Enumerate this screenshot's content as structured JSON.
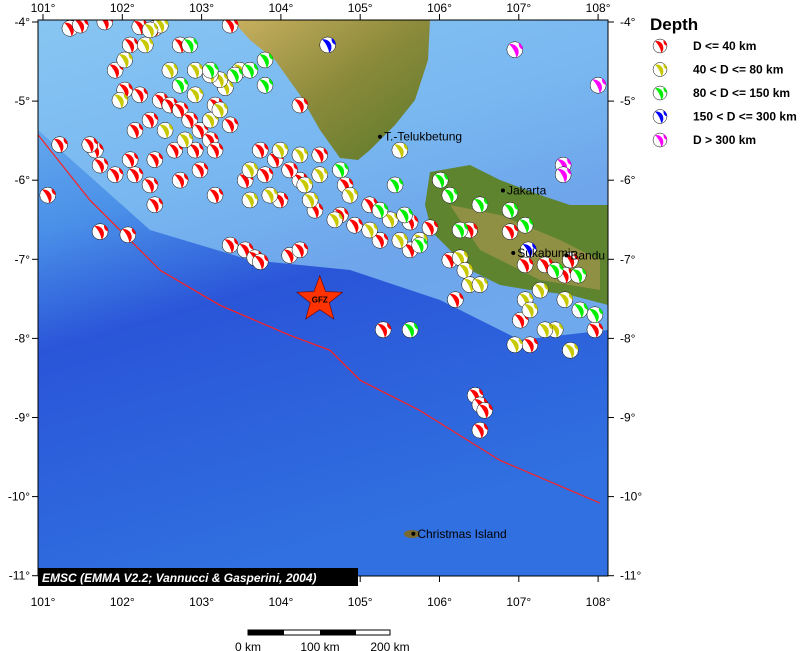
{
  "legend": {
    "title": "Depth",
    "items": [
      {
        "label": "D <= 40 km",
        "color": "#ff0000"
      },
      {
        "label": "40 < D <= 80 km",
        "color": "#c8c800"
      },
      {
        "label": "80 < D <= 150 km",
        "color": "#00ee00"
      },
      {
        "label": "150 < D <= 300 km",
        "color": "#0000ff"
      },
      {
        "label": "D > 300 km",
        "color": "#ff00ff"
      }
    ]
  },
  "axes": {
    "lon_range": [
      101,
      108
    ],
    "lat_range": [
      -11,
      -4
    ],
    "lon_labels": [
      "101°",
      "102°",
      "103°",
      "104°",
      "105°",
      "106°",
      "107°",
      "108°"
    ],
    "lat_labels": [
      "-4°",
      "-5°",
      "-6°",
      "-7°",
      "-8°",
      "-9°",
      "-10°",
      "-11°"
    ]
  },
  "credit": "EMSC (EMMA V2.2; Vannucci & Gasperini, 2004)",
  "scale": {
    "labels": [
      "0 km",
      "100 km",
      "200 km"
    ]
  },
  "cities": [
    {
      "name": "T.-Telukbetung",
      "lon": 105.25,
      "lat": -5.45
    },
    {
      "name": "Jakarta",
      "lon": 106.8,
      "lat": -6.13
    },
    {
      "name": "Sukabumi",
      "lon": 106.93,
      "lat": -6.92
    },
    {
      "name": "Bandu",
      "lon": 107.6,
      "lat": -6.95
    },
    {
      "name": "Christmas Island",
      "lon": 105.67,
      "lat": -10.47
    }
  ],
  "epicenter": {
    "label": "GFZ",
    "lon": 104.49,
    "lat": -7.51,
    "color": "#ff3300"
  },
  "trench": [
    [
      100.94,
      -5.43
    ],
    [
      101.59,
      -6.25
    ],
    [
      102.48,
      -7.14
    ],
    [
      103.23,
      -7.58
    ],
    [
      104.11,
      -7.96
    ],
    [
      104.62,
      -8.15
    ],
    [
      105.0,
      -8.53
    ],
    [
      105.75,
      -8.91
    ],
    [
      106.76,
      -9.54
    ],
    [
      108.02,
      -10.08
    ]
  ],
  "events": {
    "1": [
      [
        101.34,
        -4.08
      ],
      [
        101.47,
        -4.04
      ],
      [
        101.78,
        -4.0
      ],
      [
        102.22,
        -4.06
      ],
      [
        102.41,
        -4.08
      ],
      [
        103.36,
        -4.04
      ],
      [
        102.73,
        -4.29
      ],
      [
        102.1,
        -4.29
      ],
      [
        101.91,
        -4.61
      ],
      [
        102.03,
        -4.86
      ],
      [
        102.22,
        -4.92
      ],
      [
        102.48,
        -4.99
      ],
      [
        102.6,
        -5.05
      ],
      [
        102.73,
        -5.11
      ],
      [
        102.85,
        -5.24
      ],
      [
        102.35,
        -5.24
      ],
      [
        102.16,
        -5.37
      ],
      [
        102.98,
        -5.37
      ],
      [
        103.11,
        -5.49
      ],
      [
        103.17,
        -5.62
      ],
      [
        102.92,
        -5.62
      ],
      [
        102.66,
        -5.62
      ],
      [
        102.41,
        -5.74
      ],
      [
        102.1,
        -5.74
      ],
      [
        101.66,
        -5.62
      ],
      [
        101.21,
        -5.55
      ],
      [
        101.59,
        -5.55
      ],
      [
        101.72,
        -5.81
      ],
      [
        101.91,
        -5.93
      ],
      [
        102.16,
        -5.93
      ],
      [
        102.73,
        -6.0
      ],
      [
        102.98,
        -5.87
      ],
      [
        103.17,
        -6.19
      ],
      [
        102.41,
        -6.31
      ],
      [
        102.35,
        -6.06
      ],
      [
        102.07,
        -6.69
      ],
      [
        101.72,
        -6.65
      ],
      [
        101.06,
        -6.19
      ],
      [
        103.36,
        -5.3
      ],
      [
        103.17,
        -5.05
      ],
      [
        104.24,
        -5.05
      ],
      [
        103.36,
        -6.82
      ],
      [
        103.55,
        -6.88
      ],
      [
        103.67,
        -6.98
      ],
      [
        103.74,
        -7.03
      ],
      [
        104.11,
        -6.95
      ],
      [
        104.24,
        -6.88
      ],
      [
        104.24,
        -6.0
      ],
      [
        104.43,
        -6.38
      ],
      [
        104.81,
        -6.06
      ],
      [
        104.75,
        -6.44
      ],
      [
        104.93,
        -6.57
      ],
      [
        105.12,
        -6.31
      ],
      [
        105.25,
        -6.76
      ],
      [
        105.63,
        -6.88
      ],
      [
        105.63,
        -6.53
      ],
      [
        105.88,
        -6.6
      ],
      [
        106.38,
        -6.63
      ],
      [
        106.2,
        -7.51
      ],
      [
        105.29,
        -7.89
      ],
      [
        106.45,
        -8.72
      ],
      [
        106.51,
        -8.84
      ],
      [
        106.57,
        -8.91
      ],
      [
        106.51,
        -9.16
      ],
      [
        106.13,
        -7.01
      ],
      [
        106.89,
        -6.65
      ],
      [
        107.33,
        -7.07
      ],
      [
        107.08,
        -7.07
      ],
      [
        107.65,
        -7.01
      ],
      [
        107.58,
        -7.2
      ],
      [
        107.96,
        -7.89
      ],
      [
        107.02,
        -7.77
      ],
      [
        107.14,
        -8.08
      ],
      [
        104.11,
        -5.87
      ],
      [
        103.8,
        -5.93
      ],
      [
        103.55,
        -6.0
      ],
      [
        103.99,
        -6.25
      ],
      [
        103.93,
        -5.74
      ],
      [
        104.49,
        -5.68
      ],
      [
        103.74,
        -5.62
      ]
    ],
    "2": [
      [
        102.48,
        -4.04
      ],
      [
        102.35,
        -4.1
      ],
      [
        102.29,
        -4.29
      ],
      [
        102.03,
        -4.48
      ],
      [
        101.97,
        -4.99
      ],
      [
        102.54,
        -5.37
      ],
      [
        102.79,
        -5.49
      ],
      [
        103.11,
        -5.24
      ],
      [
        103.3,
        -4.83
      ],
      [
        103.23,
        -4.73
      ],
      [
        103.48,
        -4.61
      ],
      [
        103.11,
        -4.67
      ],
      [
        102.92,
        -4.61
      ],
      [
        102.6,
        -4.61
      ],
      [
        102.92,
        -4.92
      ],
      [
        103.23,
        -5.11
      ],
      [
        103.61,
        -6.25
      ],
      [
        103.86,
        -6.19
      ],
      [
        104.3,
        -6.06
      ],
      [
        103.61,
        -5.87
      ],
      [
        104.24,
        -5.68
      ],
      [
        103.99,
        -5.62
      ],
      [
        104.37,
        -6.25
      ],
      [
        104.49,
        -5.93
      ],
      [
        104.68,
        -6.5
      ],
      [
        104.87,
        -6.19
      ],
      [
        105.12,
        -6.63
      ],
      [
        105.38,
        -6.5
      ],
      [
        105.5,
        -6.76
      ],
      [
        105.75,
        -6.76
      ],
      [
        106.26,
        -6.98
      ],
      [
        106.32,
        -7.14
      ],
      [
        106.38,
        -7.32
      ],
      [
        106.51,
        -7.32
      ],
      [
        107.08,
        -7.51
      ],
      [
        107.14,
        -7.64
      ],
      [
        107.46,
        -7.89
      ],
      [
        107.33,
        -7.89
      ],
      [
        107.65,
        -8.15
      ],
      [
        106.95,
        -8.08
      ],
      [
        107.27,
        -7.39
      ],
      [
        107.58,
        -7.51
      ],
      [
        105.5,
        -5.62
      ]
    ],
    "3": [
      [
        102.85,
        -4.29
      ],
      [
        103.11,
        -4.61
      ],
      [
        103.42,
        -4.67
      ],
      [
        103.61,
        -4.61
      ],
      [
        103.8,
        -4.8
      ],
      [
        103.8,
        -4.48
      ],
      [
        102.73,
        -4.8
      ],
      [
        104.75,
        -5.87
      ],
      [
        105.44,
        -6.06
      ],
      [
        105.56,
        -6.44
      ],
      [
        105.25,
        -6.38
      ],
      [
        106.01,
        -6.0
      ],
      [
        106.26,
        -6.63
      ],
      [
        105.75,
        -6.82
      ],
      [
        106.51,
        -6.31
      ],
      [
        106.89,
        -6.38
      ],
      [
        107.08,
        -6.57
      ],
      [
        105.63,
        -7.89
      ],
      [
        107.46,
        -7.14
      ],
      [
        107.75,
        -7.2
      ],
      [
        107.77,
        -7.64
      ],
      [
        107.96,
        -7.7
      ],
      [
        106.13,
        -6.19
      ]
    ],
    "4": [
      [
        104.59,
        -4.29
      ],
      [
        107.12,
        -6.88
      ]
    ],
    "5": [
      [
        106.95,
        -4.35
      ],
      [
        108.0,
        -4.8
      ],
      [
        107.56,
        -5.81
      ],
      [
        107.56,
        -5.93
      ]
    ]
  }
}
